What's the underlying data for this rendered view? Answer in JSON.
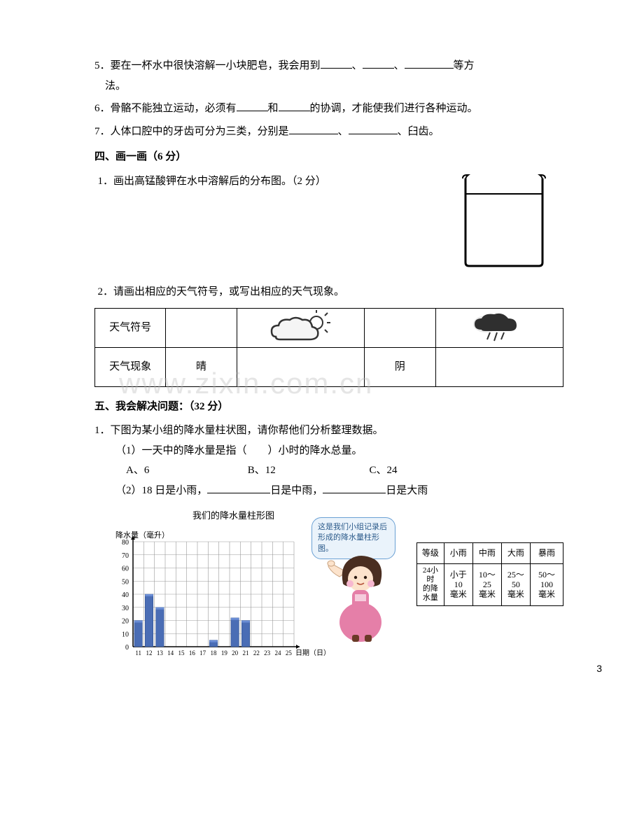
{
  "q5": {
    "text_a": "5．要在一杯水中很快溶解一小块肥皂，我会用到",
    "sep1": "、",
    "sep2": "、",
    "text_b": "等方",
    "text_c": "法。"
  },
  "q6": {
    "text_a": "6．骨骼不能独立运动，必须有",
    "text_b": "和",
    "text_c": "的协调，才能使我们进行各种运动。"
  },
  "q7": {
    "text_a": "7．人体口腔中的牙齿可分为三类，分别是",
    "sep1": "、",
    "text_b": "、臼齿。"
  },
  "section4": {
    "title": "四、画一画（6 分）",
    "q1": "1．画出高锰酸钾在水中溶解后的分布图。（2 分）",
    "q2": "2．请画出相应的天气符号，或写出相应的天气现象。",
    "beaker": {
      "stroke": "#000000",
      "fill": "#ffffff",
      "water_y": 32
    },
    "weather_table": {
      "r1c1": "天气符号",
      "r2c1": "天气现象",
      "r2c2": "晴",
      "r2c4": "阴",
      "cloud_sun_colors": {
        "cloud": "#f3f3f3",
        "stroke": "#333333",
        "sun": "#333333"
      },
      "dark_cloud_colors": {
        "cloud": "#3a3a3a",
        "light": "#d9d9d9",
        "rain": "#444444"
      }
    }
  },
  "section5": {
    "title": "五、我会解决问题：（32 分）",
    "q1_intro": "1．下图为某小组的降水量柱状图，请你帮他们分析整理数据。",
    "sub1": "（1）一天中的降水量是指（　　）小时的降水总量。",
    "opts": {
      "a": "A、6",
      "b": "B、12",
      "c": "C、24"
    },
    "sub2_a": "（2）18 日是小雨，",
    "sub2_b": "日是中雨，",
    "sub2_c": "日是大雨",
    "chart": {
      "title": "我们的降水量柱形图",
      "y_label": "降水量（毫升）",
      "x_label": "日期（日）",
      "y_ticks": [
        0,
        10,
        20,
        30,
        40,
        50,
        60,
        70,
        80
      ],
      "x_ticks": [
        "11",
        "12",
        "13",
        "14",
        "15",
        "16",
        "17",
        "18",
        "19",
        "20",
        "21",
        "22",
        "23",
        "24",
        "25"
      ],
      "bars": [
        {
          "x": 11,
          "v": 20
        },
        {
          "x": 12,
          "v": 40
        },
        {
          "x": 13,
          "v": 30
        },
        {
          "x": 18,
          "v": 5
        },
        {
          "x": 20,
          "v": 22
        },
        {
          "x": 21,
          "v": 20
        }
      ],
      "bar_color": "#4a6db5",
      "grid_color": "#999999",
      "plot_bg": "#ffffff"
    },
    "bubble": "这是我们小组记录后形成的降水量柱形图。",
    "legend": {
      "h1": "等级",
      "h2": "小雨",
      "h3": "中雨",
      "h4": "大雨",
      "h5": "暴雨",
      "r1": "24小时的降水量",
      "c2": "小于10毫米",
      "c3": "10～25毫米",
      "c4": "25～50毫米",
      "c5": "50～100毫米"
    }
  },
  "watermark": "www.zixin.com.cn",
  "page_number": "3",
  "girl": {
    "hair": "#4a2e20",
    "skin": "#fce3cc",
    "dress": "#e57fa8",
    "accent": "#ffffff"
  }
}
